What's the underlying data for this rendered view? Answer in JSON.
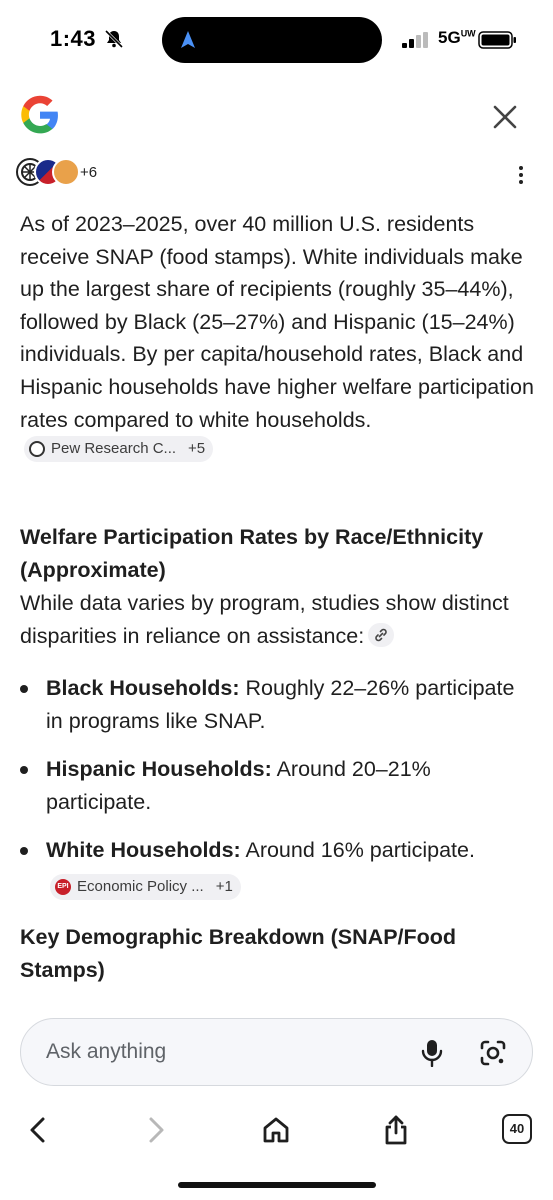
{
  "status_bar": {
    "time": "1:43",
    "network": "5G",
    "network_superscript": "UW",
    "icons": [
      "bell-slash-icon",
      "navigation-arrow-icon",
      "signal-bars-icon",
      "battery-icon"
    ]
  },
  "header": {
    "logo": "google-g-logo",
    "close_icon": "close-icon"
  },
  "sources_row": {
    "more_count": "+6",
    "menu_icon": "more-vertical-icon"
  },
  "answer": {
    "intro_paragraph": "As of 2023–2025, over 40 million U.S. residents receive SNAP (food stamps). White individuals make up the largest share of recipients (roughly 35–44%), followed by Black (25–27%) and Hispanic (15–24%) individuals. By per capita/household rates, Black and Hispanic households have higher welfare participation rates compared to white households.",
    "intro_chip": {
      "label": "Pew Research C...",
      "more": "+5"
    },
    "section1_heading": "Welfare Participation Rates by Race/Ethnicity (Approximate)",
    "section1_text": "While data varies by program, studies show distinct disparities in reliance on assistance:",
    "bullets": [
      {
        "bold": "Black Households:",
        "text": " Roughly 22–26% participate in programs like SNAP."
      },
      {
        "bold": "Hispanic Households:",
        "text": " Around 20–21% participate."
      },
      {
        "bold": "White Households:",
        "text": " Around 16% participate."
      }
    ],
    "bullet3_chip": {
      "label": "Economic Policy ...",
      "more": "+1"
    },
    "section2_heading": "Key Demographic Breakdown (SNAP/Food Stamps)"
  },
  "ask_bar": {
    "placeholder": "Ask anything"
  },
  "bottom_nav": {
    "tabs_count": "40"
  },
  "colors": {
    "text": "#1f1f1f",
    "chip_bg": "#f0f0f3",
    "ask_bg": "#f6f7fa",
    "google_blue": "#4285F4",
    "google_red": "#EA4335",
    "google_yellow": "#FBBC05",
    "google_green": "#34A853"
  }
}
